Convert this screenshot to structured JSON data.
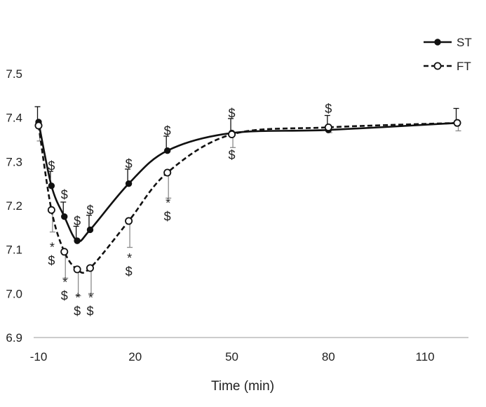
{
  "chart_data": {
    "type": "line",
    "title": "",
    "xlabel": "Time (min)",
    "ylabel": "",
    "xlim": [
      -10,
      120
    ],
    "ylim": [
      6.9,
      7.5
    ],
    "x_ticks": [
      "-10",
      "20",
      "50",
      "80",
      "110"
    ],
    "y_ticks": [
      "6.9",
      "7.0",
      "7.1",
      "7.2",
      "7.3",
      "7.4",
      "7.5"
    ],
    "grid": false,
    "legend": {
      "placement": "top-right"
    },
    "series": [
      {
        "name": "ST",
        "style": "solid-filled",
        "color": "#111111",
        "points": [
          {
            "x": -10,
            "y": 7.39,
            "err": 0.035
          },
          {
            "x": -6,
            "y": 7.245,
            "err": 0.033
          },
          {
            "x": -2,
            "y": 7.175,
            "err": 0.033
          },
          {
            "x": 2,
            "y": 7.12,
            "err": 0.033
          },
          {
            "x": 6,
            "y": 7.145,
            "err": 0.033
          },
          {
            "x": 18,
            "y": 7.25,
            "err": 0.033
          },
          {
            "x": 30,
            "y": 7.325,
            "err": 0.033
          },
          {
            "x": 50,
            "y": 7.365,
            "err": 0.033
          },
          {
            "x": 80,
            "y": 7.372,
            "err": 0.033
          },
          {
            "x": 120,
            "y": 7.388,
            "err": 0.033
          }
        ]
      },
      {
        "name": "FT",
        "style": "dashed-open",
        "color": "#111111",
        "points": [
          {
            "x": -10,
            "y": 7.382,
            "err": 0.035
          },
          {
            "x": -6,
            "y": 7.19,
            "err": 0.05
          },
          {
            "x": -2,
            "y": 7.095,
            "err": 0.06
          },
          {
            "x": 2,
            "y": 7.055,
            "err": 0.06
          },
          {
            "x": 6,
            "y": 7.058,
            "err": 0.058
          },
          {
            "x": 18,
            "y": 7.165,
            "err": 0.06
          },
          {
            "x": 30,
            "y": 7.275,
            "err": 0.058
          },
          {
            "x": 50,
            "y": 7.362,
            "err": 0.03
          },
          {
            "x": 80,
            "y": 7.378,
            "err": 0.012
          },
          {
            "x": 120,
            "y": 7.388,
            "err": 0.018
          }
        ]
      }
    ],
    "annotations": [
      {
        "x": -6,
        "y": 7.29,
        "text": "$"
      },
      {
        "x": -2,
        "y": 7.225,
        "text": "$"
      },
      {
        "x": 2,
        "y": 7.165,
        "text": "$"
      },
      {
        "x": 6,
        "y": 7.19,
        "text": "$"
      },
      {
        "x": 18,
        "y": 7.295,
        "text": "$"
      },
      {
        "x": 30,
        "y": 7.37,
        "text": "$"
      },
      {
        "x": 50,
        "y": 7.41,
        "text": "$"
      },
      {
        "x": 50,
        "y": 7.315,
        "text": "$"
      },
      {
        "x": 80,
        "y": 7.42,
        "text": "$"
      },
      {
        "x": -6,
        "y": 7.11,
        "text": "*"
      },
      {
        "x": -6,
        "y": 7.075,
        "text": "$"
      },
      {
        "x": -2,
        "y": 7.03,
        "text": "*"
      },
      {
        "x": -2,
        "y": 6.995,
        "text": "$"
      },
      {
        "x": 2,
        "y": 6.995,
        "text": "*"
      },
      {
        "x": 2,
        "y": 6.96,
        "text": "$"
      },
      {
        "x": 6,
        "y": 6.995,
        "text": "*"
      },
      {
        "x": 6,
        "y": 6.96,
        "text": "$"
      },
      {
        "x": 18,
        "y": 7.085,
        "text": "*"
      },
      {
        "x": 18,
        "y": 7.05,
        "text": "$"
      },
      {
        "x": 30,
        "y": 7.21,
        "text": "*"
      },
      {
        "x": 30,
        "y": 7.175,
        "text": "$"
      }
    ]
  }
}
